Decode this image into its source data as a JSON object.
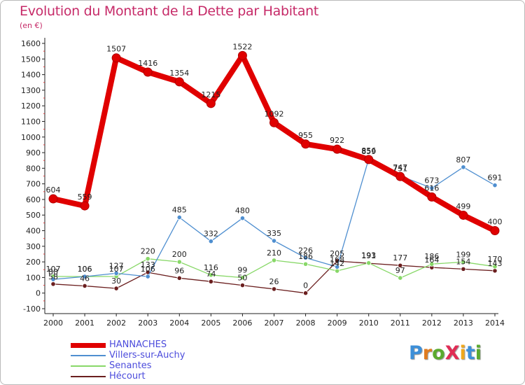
{
  "title": "Evolution du Montant de la Dette par Habitant",
  "subtitle": "(en €)",
  "logo": {
    "text": "ProXiti",
    "letter_colors": [
      "#3d8fd8",
      "#e07b1e",
      "#5aaa2e",
      "#e02d55",
      "#f0a81c",
      "#3d8fd8",
      "#5aaa2e"
    ]
  },
  "chart_data": {
    "type": "line",
    "x": [
      "2000",
      "2001",
      "2002",
      "2003",
      "2004",
      "2005",
      "2006",
      "2007",
      "2008",
      "2009",
      "2010",
      "2011",
      "2012",
      "2013",
      "2014"
    ],
    "ylim": [
      -100,
      1600
    ],
    "ytick_step": 100,
    "grid": false,
    "legend_position": "bottom-left",
    "series": [
      {
        "name": "HANNACHES",
        "color": "#e00000",
        "values": [
          604,
          559,
          1507,
          1416,
          1354,
          1215,
          1522,
          1092,
          955,
          922,
          856,
          747,
          616,
          499,
          400
        ]
      },
      {
        "name": "Villers-sur-Auchy",
        "color": "#4f8fd0",
        "values": [
          88,
          106,
          127,
          106,
          485,
          332,
          480,
          335,
          226,
          168,
          859,
          751,
          673,
          807,
          691
        ]
      },
      {
        "name": "Senantes",
        "color": "#88d868",
        "values": [
          107,
          106,
          107,
          220,
          200,
          116,
          99,
          210,
          186,
          142,
          193,
          97,
          186,
          199,
          170
        ]
      },
      {
        "name": "Hécourt",
        "color": "#6b1f1f",
        "values": [
          58,
          46,
          30,
          133,
          96,
          74,
          50,
          26,
          0,
          205,
          191,
          177,
          164,
          154,
          143
        ]
      }
    ],
    "data_labels": [
      [
        "604",
        "559",
        "1507",
        "1416",
        "1354",
        "1215",
        "1522",
        "1092",
        "955",
        "922",
        "856",
        "747",
        "616",
        "499",
        "400"
      ],
      [
        "88",
        "106",
        "127",
        "106",
        "485",
        "332",
        "480",
        "335",
        "226",
        "168",
        "859",
        "751",
        "673",
        "807",
        "691"
      ],
      [
        "107",
        "106",
        "107",
        "220",
        "200",
        "116",
        "99",
        "210",
        "186",
        "142",
        "193",
        "97",
        "186",
        "199",
        "170"
      ],
      [
        "58",
        "46",
        "30",
        "133",
        "96",
        "74",
        "50",
        "26",
        "0",
        "205",
        "191",
        "177",
        "164",
        "154",
        "143"
      ]
    ]
  }
}
